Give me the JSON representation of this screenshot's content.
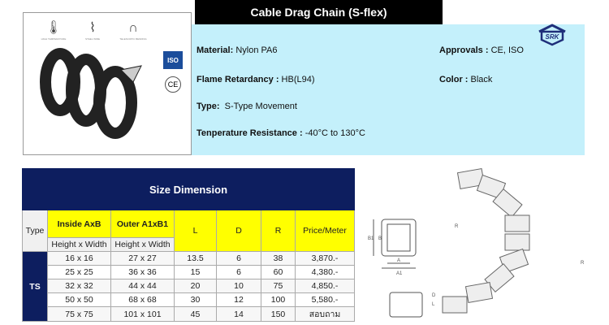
{
  "product_panel": {
    "features": [
      {
        "icon": "thermometer-icon",
        "label": "HIGH TEMPERATURE"
      },
      {
        "icon": "steel-wire-icon",
        "label": "STEEL WIRE"
      },
      {
        "icon": "bending-icon",
        "label": "TELESCOPIC BENDING"
      }
    ],
    "badges": {
      "iso": "ISO",
      "ce": "CE"
    }
  },
  "title": "Cable Drag Chain (S-flex)",
  "logo": "SRK",
  "specs": {
    "material_label": "Material:",
    "material": "Nylon PA6",
    "flame_label": "Flame Retardancy :",
    "flame": "HB(L94)",
    "type_label": "Type:",
    "type": "S-Type Movement",
    "temp_label": "Tenperature Resistance :",
    "temp": "-40°C to 130°C",
    "approvals_label": "Approvals :",
    "approvals": "CE, ISO",
    "color_label": "Color :",
    "color": "Black"
  },
  "table": {
    "title": "Size Dimension",
    "headers": {
      "type": "Type",
      "inside": "Inside AxB",
      "outer": "Outer A1xB1",
      "l": "L",
      "d": "D",
      "r": "R",
      "price": "Price/Meter",
      "inside_sub": "Height x Width",
      "outer_sub": "Height x Width"
    },
    "type_value": "TS",
    "rows": [
      [
        "16 x 16",
        "27 x 27",
        "13.5",
        "6",
        "38",
        "3,870.-"
      ],
      [
        "25 x 25",
        "36 x 36",
        "15",
        "6",
        "60",
        "4,380.-"
      ],
      [
        "32 x 32",
        "44 x 44",
        "20",
        "10",
        "75",
        "4,850.-"
      ],
      [
        "50 x 50",
        "68 x 68",
        "30",
        "12",
        "100",
        "5,580.-"
      ],
      [
        "75 x 75",
        "101 x 101",
        "45",
        "14",
        "150",
        "สอบถาม"
      ]
    ]
  },
  "diagram": {
    "labels": [
      "B1",
      "B",
      "A",
      "A1",
      "D",
      "L",
      "R",
      "R"
    ]
  }
}
